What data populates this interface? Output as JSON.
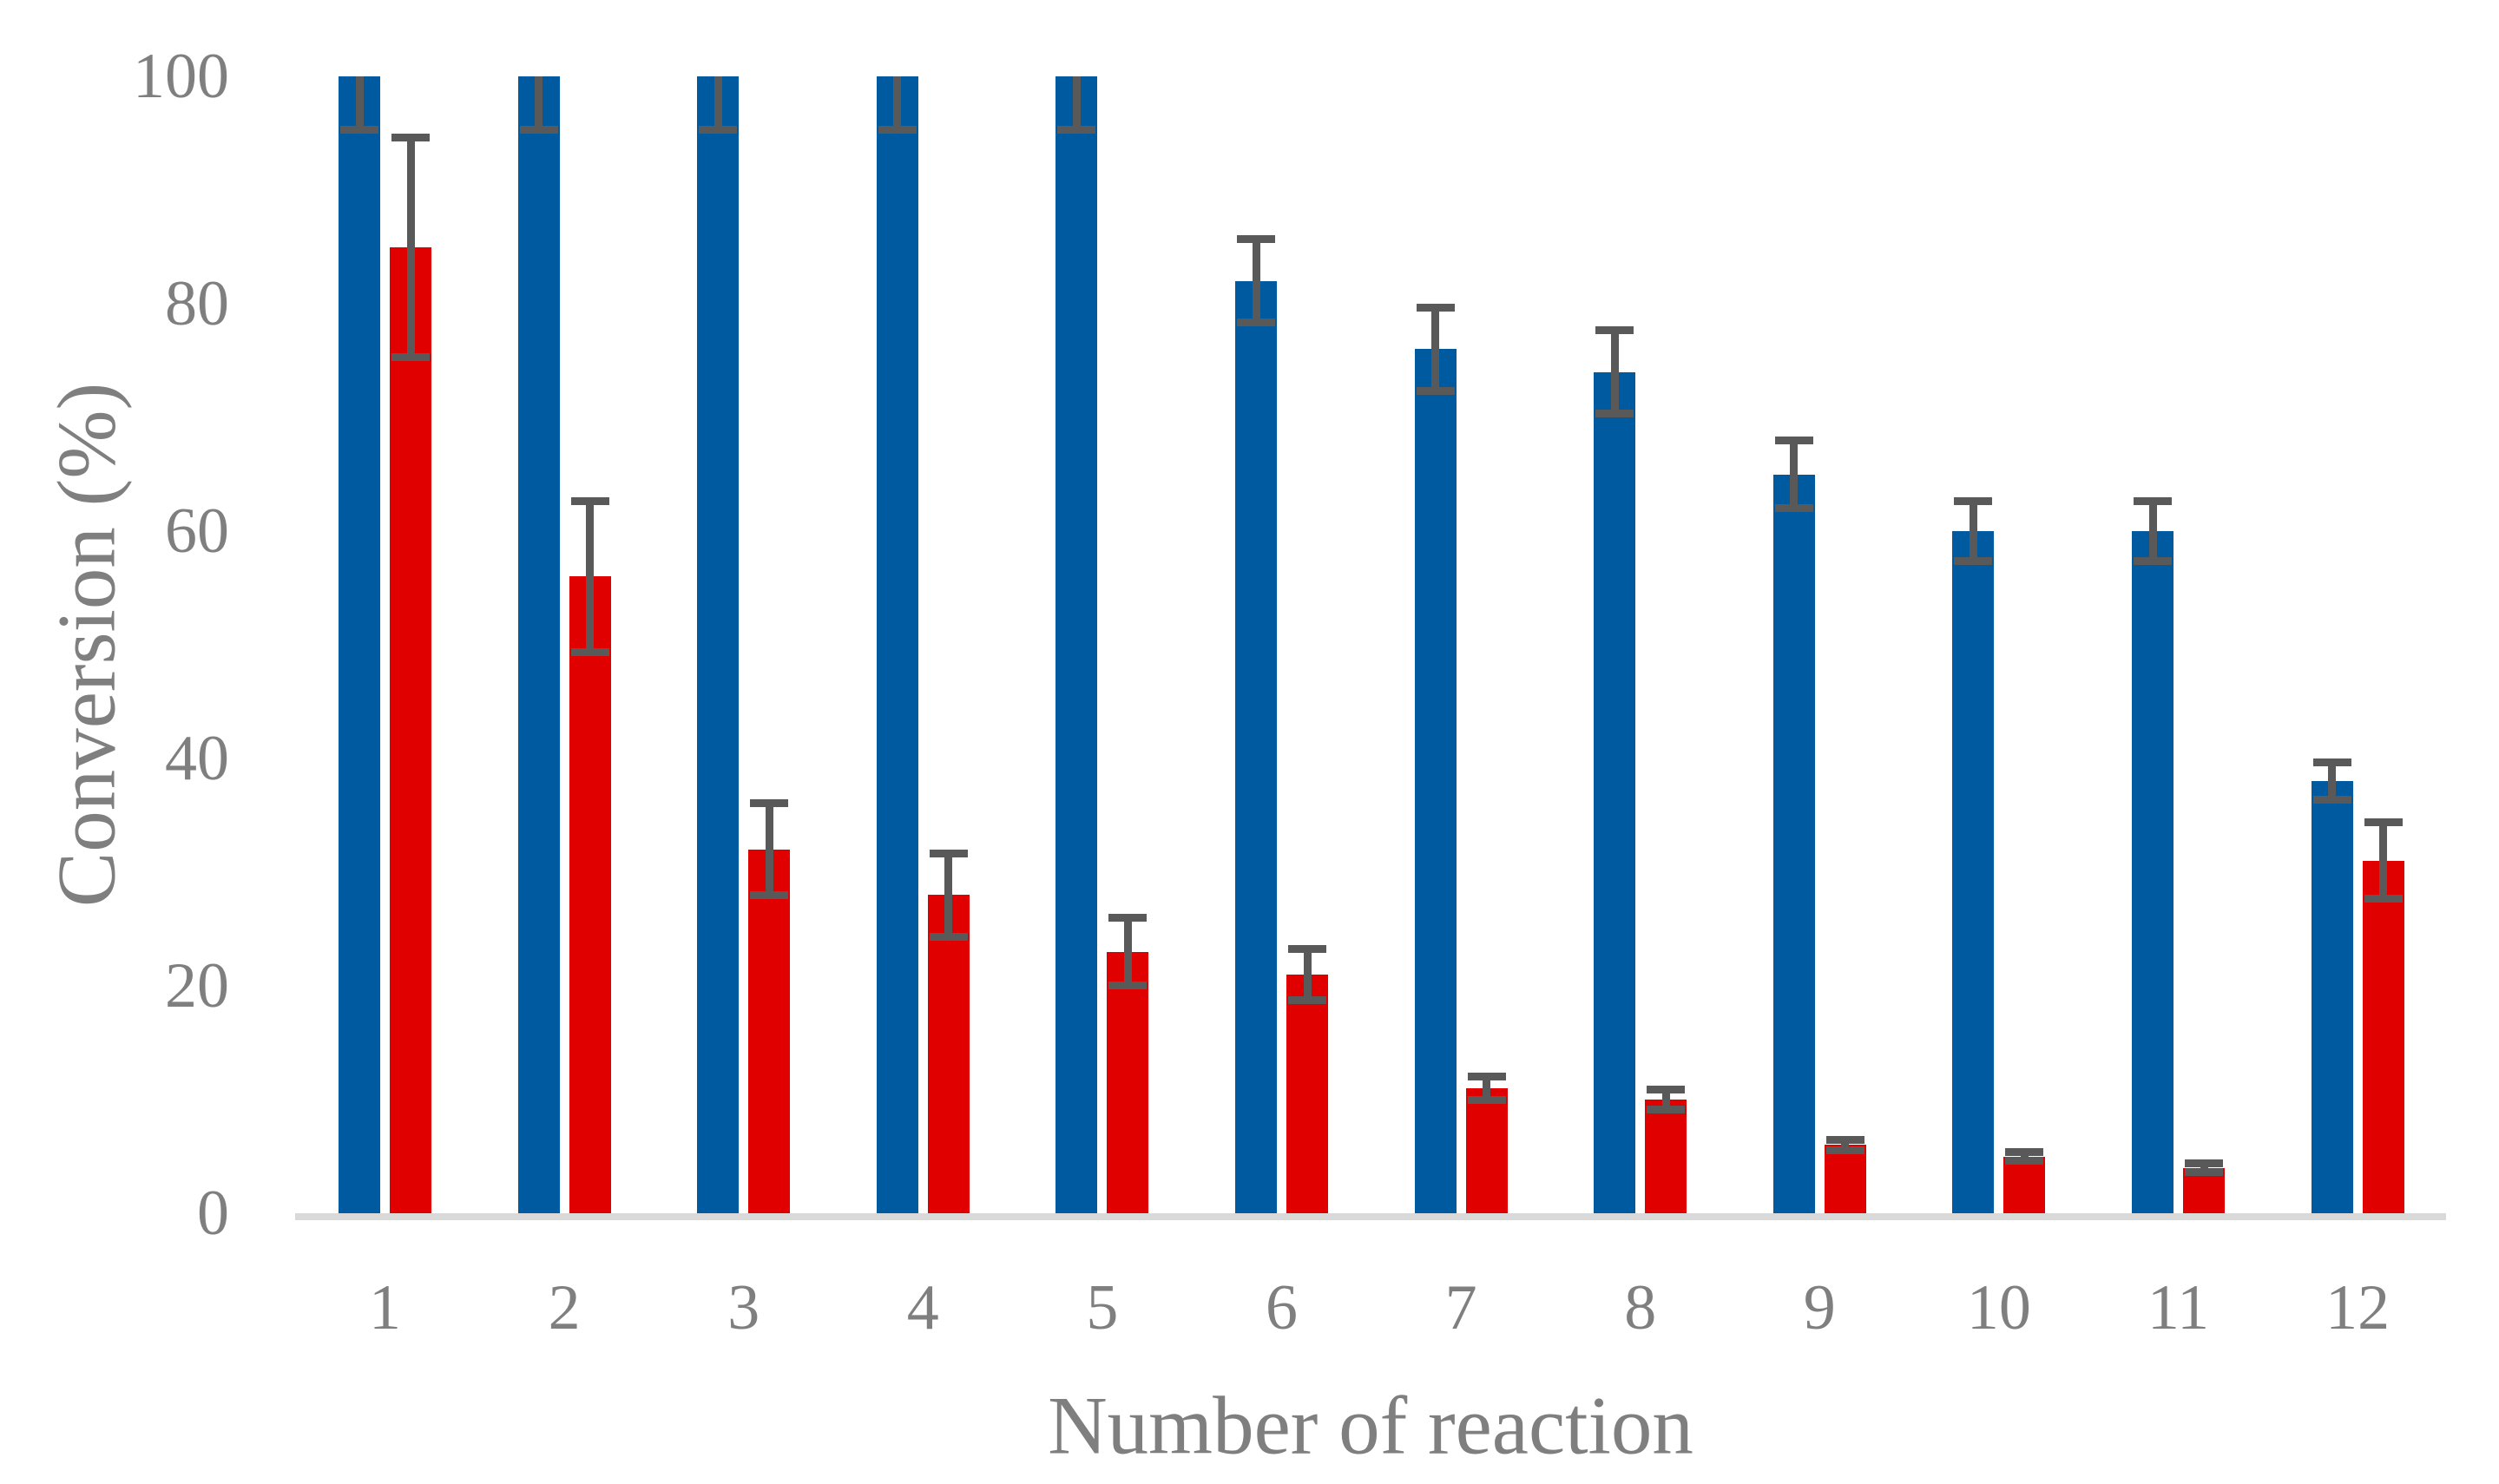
{
  "chart_data": {
    "type": "bar",
    "title": "",
    "xlabel": "Number of reaction",
    "ylabel": "Conversion (%)",
    "categories": [
      "1",
      "2",
      "3",
      "4",
      "5",
      "6",
      "7",
      "8",
      "9",
      "10",
      "11",
      "12"
    ],
    "yticks": [
      "0",
      "20",
      "40",
      "60",
      "80",
      "100"
    ],
    "ylim": [
      0,
      100
    ],
    "grid": false,
    "legend": "none",
    "error_bars": true,
    "series": [
      {
        "name": "blue",
        "color": "#005AA0",
        "values": [
          100,
          100,
          100,
          100,
          100,
          82,
          76,
          74,
          65,
          60,
          60,
          38
        ],
        "errors": [
          5,
          5,
          5,
          5,
          5,
          4,
          4,
          4,
          3.3,
          3,
          3,
          2
        ]
      },
      {
        "name": "red",
        "color": "#E00000",
        "values": [
          85,
          56,
          32,
          28,
          23,
          21,
          11,
          10,
          6,
          5,
          4,
          31
        ],
        "errors": [
          10,
          7,
          4.4,
          4,
          3.3,
          2.6,
          1.4,
          1.2,
          0.8,
          0.7,
          0.7,
          3.7
        ]
      }
    ],
    "colors": {
      "error_bar": "#595959",
      "axis_line": "#D9D9D9",
      "label_text": "#7F7F7F"
    }
  }
}
